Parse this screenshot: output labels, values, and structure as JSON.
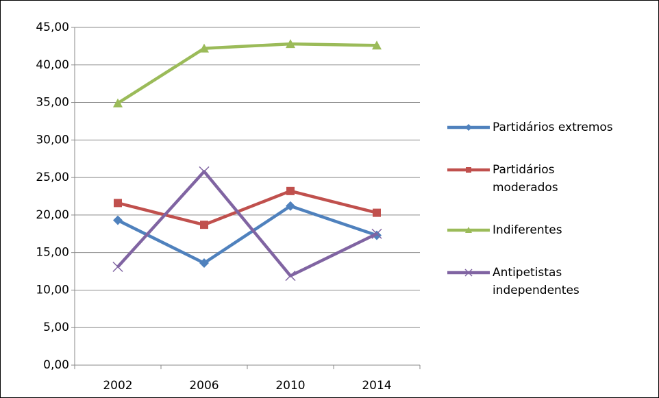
{
  "chart_data": {
    "type": "line",
    "categories": [
      "2002",
      "2006",
      "2010",
      "2014"
    ],
    "series": [
      {
        "name": "Partidários extremos",
        "color": "#4f81bd",
        "marker": "diamond",
        "values": [
          19.3,
          13.6,
          21.2,
          17.3
        ]
      },
      {
        "name": "Partidários moderados",
        "color": "#c0504d",
        "marker": "square",
        "values": [
          21.6,
          18.7,
          23.2,
          20.3
        ]
      },
      {
        "name": "Indiferentes",
        "color": "#9bbb59",
        "marker": "triangle",
        "values": [
          34.9,
          42.2,
          42.8,
          42.6
        ]
      },
      {
        "name": "Antipetistas independentes",
        "color": "#8064a2",
        "marker": "x",
        "values": [
          13.1,
          25.8,
          11.9,
          17.5
        ]
      }
    ],
    "ylim": [
      0,
      45
    ],
    "yticks": [
      {
        "value": 0,
        "label": "0,00"
      },
      {
        "value": 5,
        "label": "5,00"
      },
      {
        "value": 10,
        "label": "10,00"
      },
      {
        "value": 15,
        "label": "15,00"
      },
      {
        "value": 20,
        "label": "20,00"
      },
      {
        "value": 25,
        "label": "25,00"
      },
      {
        "value": 30,
        "label": "30,00"
      },
      {
        "value": 35,
        "label": "35,00"
      },
      {
        "value": 40,
        "label": "40,00"
      },
      {
        "value": 45,
        "label": "45,00"
      }
    ],
    "grid": true,
    "legend": "right"
  }
}
